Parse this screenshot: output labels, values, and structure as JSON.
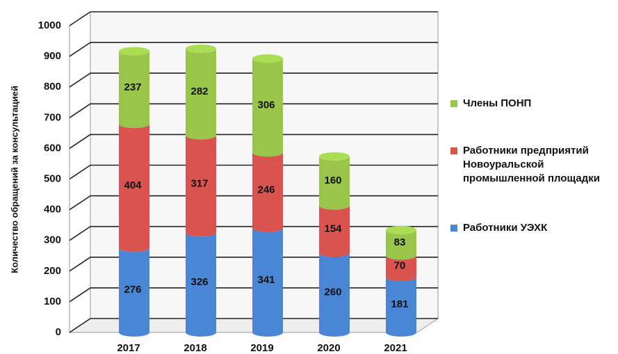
{
  "chart_data": {
    "type": "bar",
    "stacked": true,
    "y_label": "Количество обращений за консультацией",
    "categories": [
      "2017",
      "2018",
      "2019",
      "2020",
      "2021"
    ],
    "series": [
      {
        "name": "Работники УЭХК",
        "color": "#4a86d6",
        "values": [
          276,
          326,
          341,
          260,
          181
        ]
      },
      {
        "name": "Работники предприятий Новоуральской промышленной площадки",
        "color": "#d9534f",
        "values": [
          404,
          317,
          246,
          154,
          70
        ]
      },
      {
        "name": "Члены ПОНП",
        "color": "#99c54a",
        "values": [
          237,
          282,
          306,
          160,
          83
        ]
      }
    ],
    "ylim": [
      0,
      1000
    ],
    "yticks": [
      0,
      100,
      200,
      300,
      400,
      500,
      600,
      700,
      800,
      900,
      1000
    ],
    "grid": true
  }
}
